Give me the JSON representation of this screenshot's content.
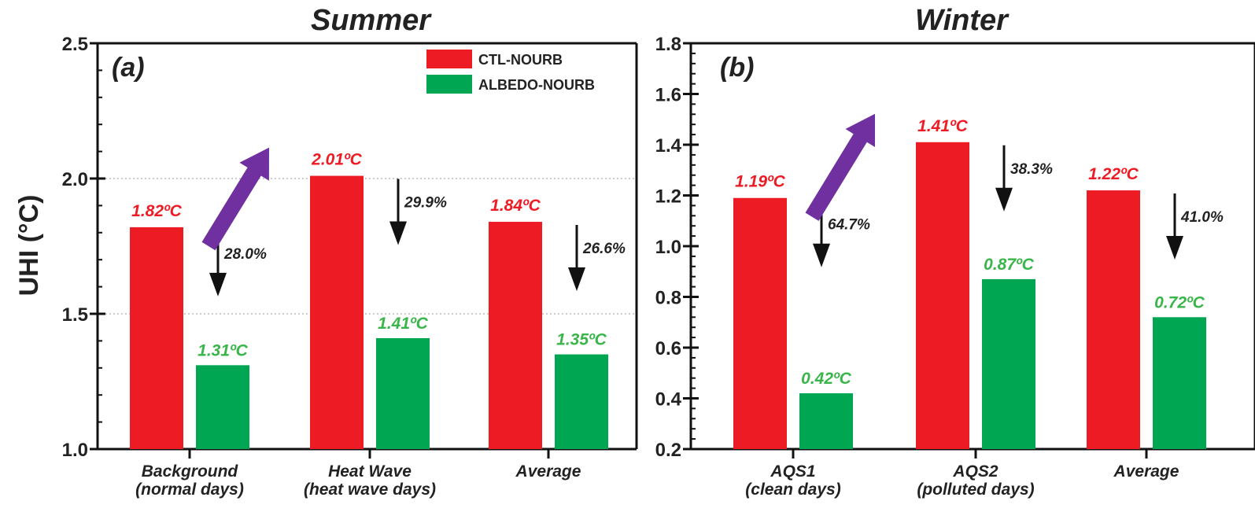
{
  "chart_data": {
    "ylabel": "UHI (°C)",
    "legend": {
      "placement": "top-right",
      "entries": [
        {
          "name": "CTL-NOURB",
          "color": "#ed1c24"
        },
        {
          "name": "ALBEDO-NOURB",
          "color": "#00a651"
        }
      ]
    },
    "colors": {
      "ctl": "#ed1c24",
      "albedo": "#00a651",
      "ctl_label": "#ed1c24",
      "albedo_label": "#39b54a",
      "arrow_trend": "#7030a0",
      "arrow_reduction": "#111111"
    },
    "panels": [
      {
        "type": "bar",
        "title": "Summer",
        "letter": "(a)",
        "ylim": [
          1.0,
          2.5
        ],
        "yticks": [
          "1.0",
          "1.5",
          "2.0",
          "2.5"
        ],
        "ytick_values": [
          1.0,
          1.5,
          2.0,
          2.5
        ],
        "grid_y": [
          1.5,
          2.0
        ],
        "trend_arrow": {
          "from_category": 0,
          "to_category": 1
        },
        "categories": [
          {
            "label": [
              "Background",
              "(normal days)"
            ],
            "ctl": 1.82,
            "albedo": 1.31,
            "ctl_label": "1.82ºC",
            "albedo_label": "1.31ºC",
            "reduction": "28.0%"
          },
          {
            "label": [
              "Heat Wave",
              "(heat wave days)"
            ],
            "ctl": 2.01,
            "albedo": 1.41,
            "ctl_label": "2.01ºC",
            "albedo_label": "1.41ºC",
            "reduction": "29.9%"
          },
          {
            "label": [
              "Average"
            ],
            "ctl": 1.84,
            "albedo": 1.35,
            "ctl_label": "1.84ºC",
            "albedo_label": "1.35ºC",
            "reduction": "26.6%"
          }
        ]
      },
      {
        "type": "bar",
        "title": "Winter",
        "letter": "(b)",
        "ylim": [
          0.2,
          1.8
        ],
        "yticks": [
          "0.2",
          "0.4",
          "0.6",
          "0.8",
          "1.0",
          "1.2",
          "1.4",
          "1.6",
          "1.8"
        ],
        "ytick_values": [
          0.2,
          0.4,
          0.6,
          0.8,
          1.0,
          1.2,
          1.4,
          1.6,
          1.8
        ],
        "grid_y": [],
        "trend_arrow": {
          "from_category": 0,
          "to_category": 1
        },
        "categories": [
          {
            "label": [
              "AQS1",
              "(clean days)"
            ],
            "ctl": 1.19,
            "albedo": 0.42,
            "ctl_label": "1.19ºC",
            "albedo_label": "0.42ºC",
            "reduction": "64.7%"
          },
          {
            "label": [
              "AQS2",
              "(polluted days)"
            ],
            "ctl": 1.41,
            "albedo": 0.87,
            "ctl_label": "1.41ºC",
            "albedo_label": "0.87ºC",
            "reduction": "38.3%"
          },
          {
            "label": [
              "Average"
            ],
            "ctl": 1.22,
            "albedo": 0.72,
            "ctl_label": "1.22ºC",
            "albedo_label": "0.72ºC",
            "reduction": "41.0%"
          }
        ]
      }
    ]
  }
}
